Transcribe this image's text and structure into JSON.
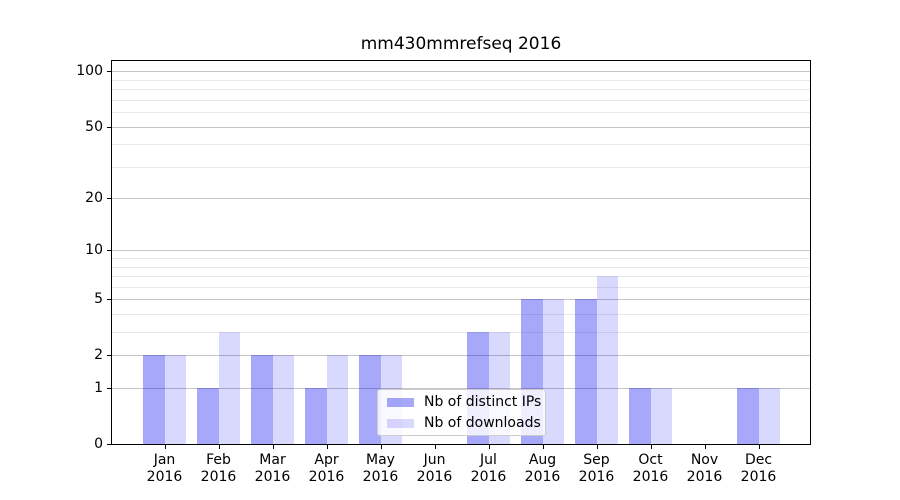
{
  "chart_data": {
    "type": "bar",
    "title": "mm430mmrefseq 2016",
    "categories": [
      "Jan",
      "Feb",
      "Mar",
      "Apr",
      "May",
      "Jun",
      "Jul",
      "Aug",
      "Sep",
      "Oct",
      "Nov",
      "Dec"
    ],
    "category_year": "2016",
    "series": [
      {
        "name": "Nb of distinct IPs",
        "color": "rgba(0,0,240,0.34)",
        "solid_color": "#a9a9f7",
        "values": [
          2,
          1,
          2,
          1,
          2,
          0,
          3,
          5,
          5,
          1,
          0,
          1
        ]
      },
      {
        "name": "Nb of downloads",
        "color": "rgba(0,0,240,0.15)",
        "solid_color": "#dadaf9",
        "values": [
          2,
          3,
          2,
          2,
          2,
          0,
          3,
          5,
          7,
          1,
          0,
          1
        ]
      }
    ],
    "xlabel": "",
    "ylabel": "",
    "yscale": "log1p",
    "ylim": [
      0,
      114
    ],
    "yticks_major": [
      0,
      1,
      2,
      5,
      10,
      20,
      50,
      100
    ],
    "ytick_labels": [
      "0",
      "1",
      "2",
      "5",
      "10",
      "20",
      "50",
      "100"
    ],
    "yticks_minor": [
      3,
      4,
      6,
      7,
      8,
      9,
      30,
      40,
      60,
      70,
      80,
      90
    ],
    "grid": true,
    "legend_position": "lower center"
  }
}
